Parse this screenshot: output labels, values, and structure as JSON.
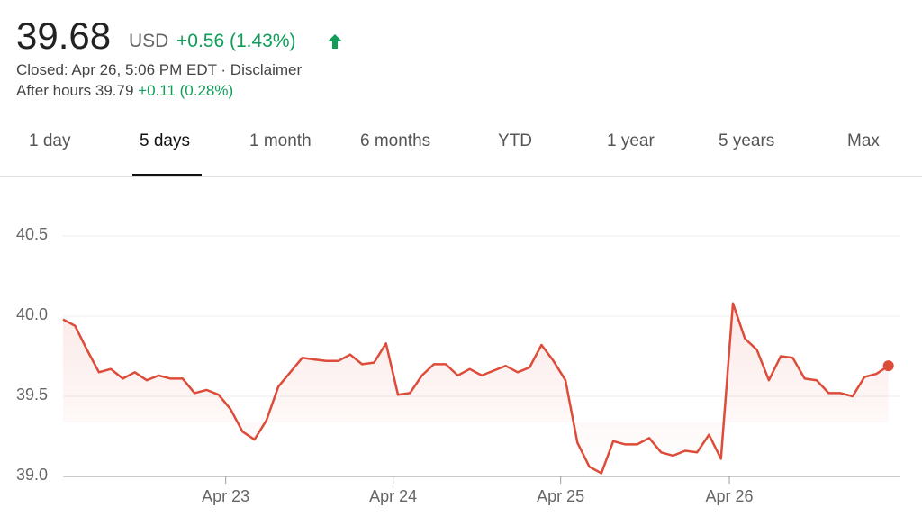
{
  "header": {
    "price": "39.68",
    "currency": "USD",
    "change": "+0.56 (1.43%)",
    "closed": "Closed: Apr 26, 5:06 PM EDT · Disclaimer",
    "after_hours": "After hours 39.79",
    "after_change": "+0.11 (0.28%)"
  },
  "tabs": {
    "items": [
      "1 day",
      "5 days",
      "1 month",
      "6 months",
      "YTD",
      "1 year",
      "5 years",
      "Max"
    ],
    "selected": "5 days"
  },
  "chart_data": {
    "type": "line",
    "color": "#dd4b39",
    "grid": true,
    "xlim": [
      0,
      70
    ],
    "xticks": [
      {
        "value": 13.6,
        "label": "Apr 23"
      },
      {
        "value": 27.6,
        "label": "Apr 24"
      },
      {
        "value": 41.6,
        "label": "Apr 25"
      },
      {
        "value": 55.7,
        "label": "Apr 26"
      }
    ],
    "ylim": [
      39,
      40.55
    ],
    "yticks": [
      {
        "value": 39,
        "label": "39.0"
      },
      39.5,
      {
        "value": 40,
        "label": "40.0"
      },
      40.5
    ],
    "values": [
      39.98,
      39.94,
      39.79,
      39.65,
      39.67,
      39.61,
      39.65,
      39.6,
      39.63,
      39.61,
      39.61,
      39.52,
      39.54,
      39.51,
      39.42,
      39.28,
      39.23,
      39.35,
      39.56,
      39.65,
      39.74,
      39.73,
      39.72,
      39.72,
      39.76,
      39.7,
      39.71,
      39.83,
      39.51,
      39.52,
      39.63,
      39.7,
      39.7,
      39.63,
      39.67,
      39.63,
      39.66,
      39.69,
      39.65,
      39.68,
      39.82,
      39.72,
      39.6,
      39.21,
      39.06,
      39.02,
      39.22,
      39.2,
      39.2,
      39.24,
      39.15,
      39.13,
      39.16,
      39.15,
      39.26,
      39.11,
      40.08,
      39.86,
      39.79,
      39.6,
      39.75,
      39.74,
      39.61,
      39.6,
      39.52,
      39.52,
      39.5,
      39.62,
      39.64,
      39.69
    ]
  }
}
